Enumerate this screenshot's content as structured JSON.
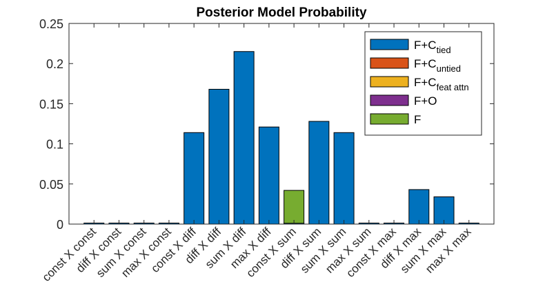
{
  "chart_data": {
    "type": "bar",
    "stacked": true,
    "title": "Posterior Model Probability",
    "xlabel": "",
    "ylabel": "",
    "ylim": [
      0,
      0.25
    ],
    "yticks": [
      "0",
      "0.05",
      "0.1",
      "0.15",
      "0.2",
      "0.25"
    ],
    "grid": false,
    "legend_position": "top-right",
    "categories": [
      "const X const",
      "diff X const",
      "sum X const",
      "max X const",
      "const X diff",
      "diff X diff",
      "sum X diff",
      "max X diff",
      "const X sum",
      "diff X sum",
      "sum X sum",
      "max X sum",
      "const X max",
      "diff X max",
      "sum X max",
      "max X max"
    ],
    "series": [
      {
        "name": "F+C",
        "subscript": "tied",
        "color": "#0072BD",
        "values": [
          0.001,
          0.001,
          0.001,
          0.001,
          0.114,
          0.168,
          0.215,
          0.121,
          0.001,
          0.128,
          0.114,
          0.001,
          0.001,
          0.043,
          0.034,
          0.001
        ]
      },
      {
        "name": "F+C",
        "subscript": "untied",
        "color": "#D95319",
        "values": [
          0,
          0,
          0,
          0,
          0,
          0,
          0,
          0,
          0,
          0,
          0,
          0,
          0,
          0,
          0,
          0
        ]
      },
      {
        "name": "F+C",
        "subscript": "feat attn",
        "color": "#EDB120",
        "values": [
          0,
          0,
          0,
          0,
          0,
          0,
          0,
          0,
          0,
          0,
          0,
          0,
          0,
          0,
          0,
          0
        ]
      },
      {
        "name": "F+O",
        "subscript": "",
        "color": "#7E2F8E",
        "values": [
          0,
          0,
          0,
          0,
          0,
          0,
          0,
          0,
          0,
          0,
          0,
          0,
          0,
          0,
          0,
          0
        ]
      },
      {
        "name": "F",
        "subscript": "",
        "color": "#77AC30",
        "values": [
          0,
          0,
          0,
          0,
          0,
          0,
          0,
          0,
          0.041,
          0,
          0,
          0,
          0,
          0,
          0,
          0
        ]
      }
    ]
  }
}
